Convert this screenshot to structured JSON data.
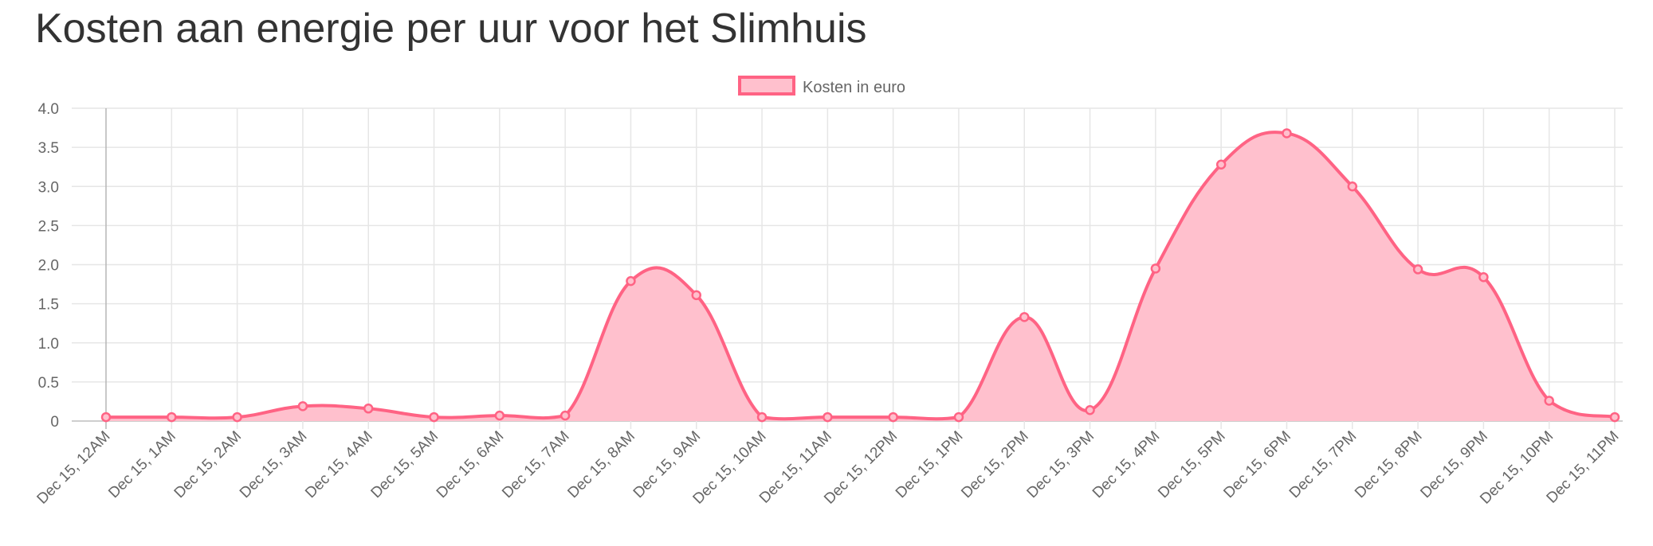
{
  "page": {
    "title": "Kosten aan energie per uur voor het Slimhuis"
  },
  "chart_data": {
    "type": "area",
    "title": "",
    "xlabel": "",
    "ylabel": "",
    "legend_position": "top-center",
    "grid": true,
    "ylim": [
      0,
      4.0
    ],
    "y_ticks": [
      "0",
      "0.5",
      "1.0",
      "1.5",
      "2.0",
      "2.5",
      "3.0",
      "3.5",
      "4.0"
    ],
    "categories": [
      "Dec 15, 12AM",
      "Dec 15, 1AM",
      "Dec 15, 2AM",
      "Dec 15, 3AM",
      "Dec 15, 4AM",
      "Dec 15, 5AM",
      "Dec 15, 6AM",
      "Dec 15, 7AM",
      "Dec 15, 8AM",
      "Dec 15, 9AM",
      "Dec 15, 10AM",
      "Dec 15, 11AM",
      "Dec 15, 12PM",
      "Dec 15, 1PM",
      "Dec 15, 2PM",
      "Dec 15, 3PM",
      "Dec 15, 4PM",
      "Dec 15, 5PM",
      "Dec 15, 6PM",
      "Dec 15, 7PM",
      "Dec 15, 8PM",
      "Dec 15, 9PM",
      "Dec 15, 10PM",
      "Dec 15, 11PM"
    ],
    "series": [
      {
        "name": "Kosten in euro",
        "color": "#ff6384",
        "fill": "#ffc0cd",
        "values": [
          0.05,
          0.05,
          0.05,
          0.19,
          0.16,
          0.05,
          0.07,
          0.07,
          1.79,
          1.61,
          0.05,
          0.05,
          0.05,
          0.05,
          1.33,
          0.14,
          1.95,
          3.28,
          3.68,
          3.0,
          1.94,
          1.84,
          0.26,
          0.05
        ]
      }
    ]
  }
}
